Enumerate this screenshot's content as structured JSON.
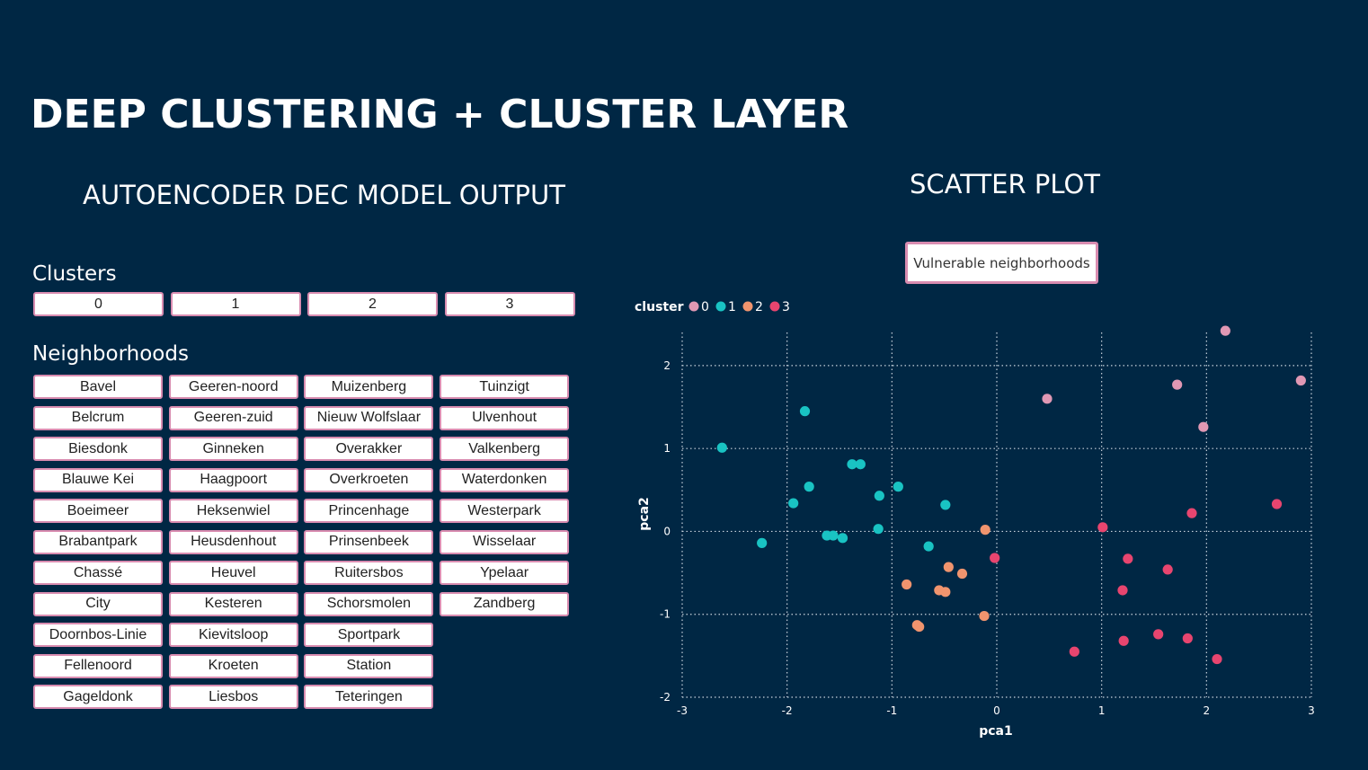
{
  "page": {
    "title": "DEEP CLUSTERING + CLUSTER LAYER",
    "left_subtitle": "AUTOENCODER DEC MODEL OUTPUT",
    "right_subtitle": "SCATTER PLOT"
  },
  "clusters_slicer": {
    "label": "Clusters",
    "items": [
      "0",
      "1",
      "2",
      "3"
    ]
  },
  "neighborhoods_slicer": {
    "label": "Neighborhoods",
    "items": [
      "Bavel",
      "Belcrum",
      "Biesdonk",
      "Blauwe Kei",
      "Boeimeer",
      "Brabantpark",
      "Chassé",
      "City",
      "Doornbos-Linie",
      "Fellenoord",
      "Gageldonk",
      "Geeren-noord",
      "Geeren-zuid",
      "Ginneken",
      "Haagpoort",
      "Heksenwiel",
      "Heusdenhout",
      "Heuvel",
      "Kesteren",
      "Kievitsloop",
      "Kroeten",
      "Liesbos",
      "Muizenberg",
      "Nieuw Wolfslaar",
      "Overakker",
      "Overkroeten",
      "Princenhage",
      "Prinsenbeek",
      "Ruitersbos",
      "Schorsmolen",
      "Sportpark",
      "Station",
      "Teteringen",
      "Tuinzigt",
      "Ulvenhout",
      "Valkenberg",
      "Waterdonken",
      "Westerpark",
      "Wisselaar",
      "Ypelaar",
      "Zandberg"
    ]
  },
  "vulnerable_button": {
    "label": "Vulnerable neighborhoods"
  },
  "chart_data": {
    "type": "scatter",
    "xlabel": "pca1",
    "ylabel": "pca2",
    "xlim": [
      -3,
      3
    ],
    "ylim": [
      -2,
      2.4
    ],
    "xticks": [
      -3,
      -2,
      -1,
      0,
      1,
      2,
      3
    ],
    "yticks": [
      -2,
      -1,
      0,
      1,
      2
    ],
    "grid": true,
    "legend": {
      "title": "cluster",
      "placement": "top-left"
    },
    "series": [
      {
        "name": "0",
        "color": "#e098b4",
        "points": [
          [
            0.48,
            1.6
          ],
          [
            1.72,
            1.77
          ],
          [
            1.97,
            1.26
          ],
          [
            2.18,
            2.42
          ],
          [
            2.9,
            1.82
          ]
        ]
      },
      {
        "name": "1",
        "color": "#19c3c3",
        "points": [
          [
            -2.62,
            1.01
          ],
          [
            -1.83,
            1.45
          ],
          [
            -2.24,
            -0.14
          ],
          [
            -1.94,
            0.34
          ],
          [
            -1.79,
            0.54
          ],
          [
            -1.62,
            -0.05
          ],
          [
            -1.56,
            -0.05
          ],
          [
            -1.47,
            -0.08
          ],
          [
            -1.38,
            0.81
          ],
          [
            -1.3,
            0.81
          ],
          [
            -1.12,
            0.43
          ],
          [
            -1.13,
            0.03
          ],
          [
            -0.94,
            0.54
          ],
          [
            -0.65,
            -0.18
          ],
          [
            -0.49,
            0.32
          ]
        ]
      },
      {
        "name": "2",
        "color": "#f0946e",
        "points": [
          [
            -0.86,
            -0.64
          ],
          [
            -0.76,
            -1.13
          ],
          [
            -0.74,
            -1.15
          ],
          [
            -0.55,
            -0.71
          ],
          [
            -0.49,
            -0.73
          ],
          [
            -0.46,
            -0.43
          ],
          [
            -0.33,
            -0.51
          ],
          [
            -0.11,
            0.02
          ],
          [
            -0.12,
            -1.02
          ]
        ]
      },
      {
        "name": "3",
        "color": "#e8456f",
        "points": [
          [
            -0.02,
            -0.32
          ],
          [
            1.01,
            0.05
          ],
          [
            1.2,
            -0.71
          ],
          [
            1.25,
            -0.33
          ],
          [
            1.63,
            -0.46
          ],
          [
            1.86,
            0.22
          ],
          [
            2.67,
            0.33
          ],
          [
            0.74,
            -1.45
          ],
          [
            1.21,
            -1.32
          ],
          [
            1.54,
            -1.24
          ],
          [
            1.82,
            -1.29
          ],
          [
            2.1,
            -1.54
          ]
        ]
      }
    ]
  }
}
